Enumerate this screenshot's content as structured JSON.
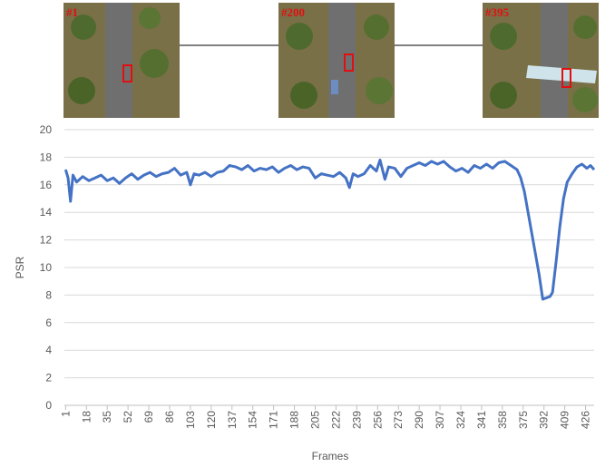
{
  "thumbnails": [
    {
      "label": "#1"
    },
    {
      "label": "#200"
    },
    {
      "label": "#395"
    }
  ],
  "chart_data": {
    "type": "line",
    "x_label": "Frames",
    "y_label": "PSR",
    "x": [
      1,
      3,
      5,
      7,
      10,
      15,
      20,
      25,
      30,
      35,
      40,
      45,
      50,
      55,
      60,
      65,
      70,
      75,
      80,
      85,
      90,
      95,
      100,
      103,
      106,
      110,
      115,
      120,
      125,
      130,
      135,
      140,
      145,
      150,
      155,
      160,
      165,
      170,
      175,
      180,
      185,
      190,
      195,
      200,
      205,
      210,
      215,
      220,
      225,
      230,
      233,
      236,
      240,
      245,
      250,
      255,
      258,
      262,
      265,
      270,
      275,
      280,
      285,
      290,
      295,
      300,
      305,
      310,
      315,
      320,
      325,
      330,
      335,
      340,
      345,
      350,
      355,
      360,
      365,
      370,
      373,
      376,
      379,
      382,
      385,
      388,
      391,
      394,
      397,
      399,
      402,
      405,
      408,
      411,
      415,
      419,
      423,
      427,
      430,
      433
    ],
    "series": [
      {
        "name": "PSR",
        "color": "#4472c4",
        "values": [
          17.1,
          16.5,
          14.8,
          16.7,
          16.2,
          16.6,
          16.3,
          16.5,
          16.7,
          16.3,
          16.5,
          16.1,
          16.5,
          16.8,
          16.4,
          16.7,
          16.9,
          16.6,
          16.8,
          16.9,
          17.2,
          16.7,
          16.9,
          16.0,
          16.8,
          16.7,
          16.9,
          16.6,
          16.9,
          17.0,
          17.4,
          17.3,
          17.1,
          17.4,
          17.0,
          17.2,
          17.1,
          17.3,
          16.9,
          17.2,
          17.4,
          17.1,
          17.3,
          17.2,
          16.5,
          16.8,
          16.7,
          16.6,
          16.9,
          16.5,
          15.8,
          16.8,
          16.6,
          16.8,
          17.4,
          17.0,
          17.8,
          16.4,
          17.3,
          17.2,
          16.6,
          17.2,
          17.4,
          17.6,
          17.4,
          17.7,
          17.5,
          17.7,
          17.3,
          17.0,
          17.2,
          16.9,
          17.4,
          17.2,
          17.5,
          17.2,
          17.6,
          17.7,
          17.4,
          17.1,
          16.5,
          15.5,
          14.0,
          12.5,
          11.0,
          9.5,
          7.7,
          7.8,
          7.9,
          8.2,
          10.5,
          13.0,
          15.0,
          16.2,
          16.8,
          17.3,
          17.5,
          17.2,
          17.4,
          17.1
        ]
      }
    ],
    "xlim": [
      0,
      433
    ],
    "xticks": [
      1,
      18,
      35,
      52,
      69,
      86,
      103,
      120,
      137,
      154,
      171,
      188,
      205,
      222,
      239,
      256,
      273,
      290,
      307,
      324,
      341,
      358,
      375,
      392,
      409,
      426
    ],
    "ylim": [
      0,
      20
    ],
    "yticks": [
      0,
      2,
      4,
      6,
      8,
      10,
      12,
      14,
      16,
      18,
      20
    ],
    "grid": true
  }
}
